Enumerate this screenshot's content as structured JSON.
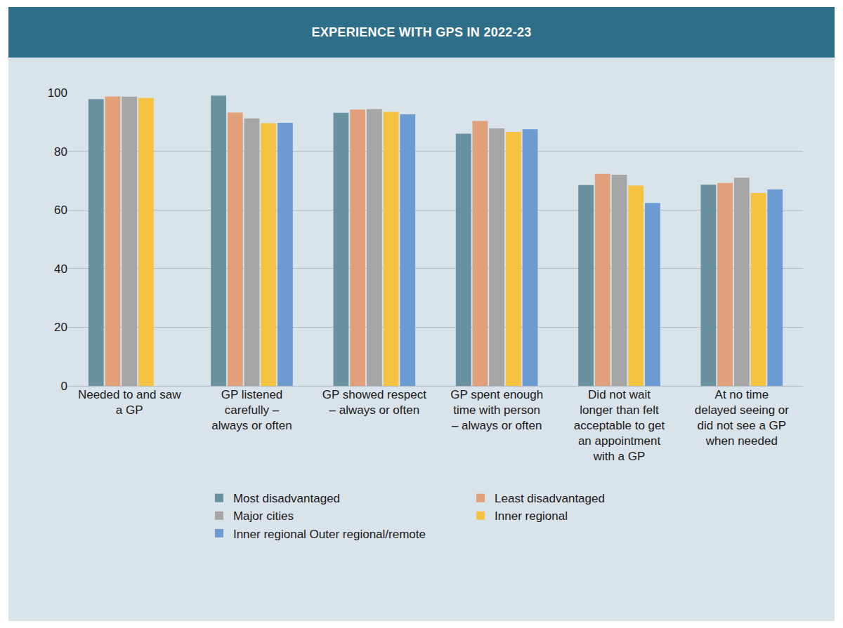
{
  "chart_data": {
    "type": "bar",
    "title": "EXPERIENCE WITH GPS IN 2022-23",
    "categories": [
      "Needed to and saw a GP",
      "GP listened carefully – always or often",
      "GP showed respect – always or often",
      "GP spent enough time with person – always or often",
      "Did not wait longer than felt acceptable to get an appointment with a GP",
      "At no time delayed seeing or did not see a GP when needed"
    ],
    "series": [
      {
        "name": "Most disadvantaged",
        "color": "#6a91a0",
        "values": [
          97.8,
          99.0,
          93.1,
          86.0,
          68.5,
          68.6
        ]
      },
      {
        "name": "Least disadvantaged",
        "color": "#e2a07a",
        "values": [
          98.7,
          93.2,
          94.2,
          90.3,
          72.3,
          69.2
        ]
      },
      {
        "name": "Major cities",
        "color": "#a6a6a6",
        "values": [
          98.6,
          91.2,
          94.4,
          87.8,
          72.0,
          71.0
        ]
      },
      {
        "name": "Inner regional",
        "color": "#f5c242",
        "values": [
          98.2,
          89.6,
          93.4,
          86.6,
          68.3,
          65.8
        ]
      },
      {
        "name": "Inner regional Outer regional/remote",
        "color": "#6b9bd1",
        "values": [
          null,
          89.7,
          92.6,
          87.5,
          62.4,
          67.0
        ]
      }
    ],
    "ylim": [
      0,
      100
    ],
    "yticks": [
      0,
      20,
      40,
      60,
      80,
      100
    ],
    "grid": true,
    "legend": "bottom"
  }
}
